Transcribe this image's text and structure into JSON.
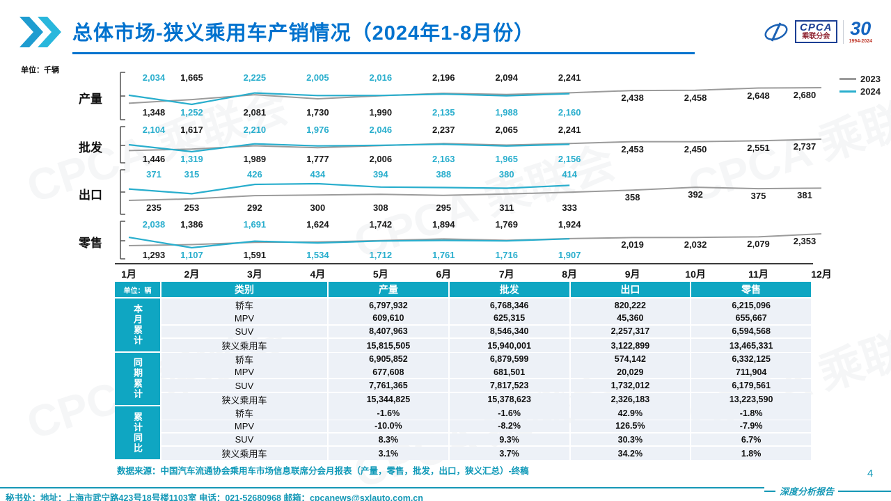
{
  "header": {
    "title": "总体市场-狭义乘用车产销情况（2024年1-8月份）",
    "logos": {
      "cpca_text": "CPCA",
      "cpca_sub": "乘联分会",
      "anniv": "30",
      "anniv_sub": "1994-2024"
    }
  },
  "chart": {
    "unit_label": "单位：千辆",
    "legend": [
      {
        "label": "2023",
        "color": "#9b9b9b"
      },
      {
        "label": "2024",
        "color": "#29AECD"
      }
    ]
  },
  "chart_data": [
    {
      "type": "line",
      "title": "产量",
      "x": [
        "1月",
        "2月",
        "3月",
        "4月",
        "5月",
        "6月",
        "7月",
        "8月",
        "9月",
        "10月",
        "11月",
        "12月"
      ],
      "series": [
        {
          "name": "2023",
          "color": "#9b9b9b",
          "values": [
            1348,
            1665,
            2081,
            1730,
            1990,
            2196,
            2094,
            2241,
            2438,
            2458,
            2648,
            2680
          ]
        },
        {
          "name": "2024",
          "color": "#29AECD",
          "values": [
            2034,
            1252,
            2225,
            2005,
            2016,
            2135,
            1988,
            2160
          ]
        }
      ]
    },
    {
      "type": "line",
      "title": "批发",
      "x": [
        "1月",
        "2月",
        "3月",
        "4月",
        "5月",
        "6月",
        "7月",
        "8月",
        "9月",
        "10月",
        "11月",
        "12月"
      ],
      "series": [
        {
          "name": "2023",
          "color": "#9b9b9b",
          "values": [
            1446,
            1617,
            1989,
            1777,
            2006,
            2237,
            2065,
            2241,
            2453,
            2450,
            2551,
            2737
          ]
        },
        {
          "name": "2024",
          "color": "#29AECD",
          "values": [
            2104,
            1319,
            2210,
            1976,
            2046,
            2163,
            1965,
            2156
          ]
        }
      ]
    },
    {
      "type": "line",
      "title": "出口",
      "x": [
        "1月",
        "2月",
        "3月",
        "4月",
        "5月",
        "6月",
        "7月",
        "8月",
        "9月",
        "10月",
        "11月",
        "12月"
      ],
      "series": [
        {
          "name": "2023",
          "color": "#9b9b9b",
          "values": [
            235,
            253,
            292,
            300,
            308,
            295,
            311,
            333,
            358,
            392,
            375,
            381
          ]
        },
        {
          "name": "2024",
          "color": "#29AECD",
          "values": [
            371,
            315,
            426,
            434,
            394,
            388,
            380,
            414
          ]
        }
      ]
    },
    {
      "type": "line",
      "title": "零售",
      "x": [
        "1月",
        "2月",
        "3月",
        "4月",
        "5月",
        "6月",
        "7月",
        "8月",
        "9月",
        "10月",
        "11月",
        "12月"
      ],
      "series": [
        {
          "name": "2023",
          "color": "#9b9b9b",
          "values": [
            1293,
            1386,
            1591,
            1624,
            1742,
            1894,
            1769,
            1924,
            2019,
            2032,
            2079,
            2353
          ]
        },
        {
          "name": "2024",
          "color": "#29AECD",
          "values": [
            2038,
            1107,
            1691,
            1534,
            1712,
            1761,
            1716,
            1907
          ]
        }
      ]
    }
  ],
  "table": {
    "unit_label": "单位：辆",
    "columns": [
      "类别",
      "产量",
      "批发",
      "出口",
      "零售"
    ],
    "groups": [
      {
        "label": "本月累计",
        "rows": [
          {
            "category": "轿车",
            "values": [
              "6,797,932",
              "6,768,346",
              "820,222",
              "6,215,096"
            ]
          },
          {
            "category": "MPV",
            "values": [
              "609,610",
              "625,315",
              "45,360",
              "655,667"
            ]
          },
          {
            "category": "SUV",
            "values": [
              "8,407,963",
              "8,546,340",
              "2,257,317",
              "6,594,568"
            ]
          },
          {
            "category": "狭义乘用车",
            "values": [
              "15,815,505",
              "15,940,001",
              "3,122,899",
              "13,465,331"
            ]
          }
        ]
      },
      {
        "label": "同期累计",
        "rows": [
          {
            "category": "轿车",
            "values": [
              "6,905,852",
              "6,879,599",
              "574,142",
              "6,332,125"
            ]
          },
          {
            "category": "MPV",
            "values": [
              "677,608",
              "681,501",
              "20,029",
              "711,904"
            ]
          },
          {
            "category": "SUV",
            "values": [
              "7,761,365",
              "7,817,523",
              "1,732,012",
              "6,179,561"
            ]
          },
          {
            "category": "狭义乘用车",
            "values": [
              "15,344,825",
              "15,378,623",
              "2,326,183",
              "13,223,590"
            ]
          }
        ]
      },
      {
        "label": "累计同比",
        "rows": [
          {
            "category": "轿车",
            "values": [
              "-1.6%",
              "-1.6%",
              "42.9%",
              "-1.8%"
            ]
          },
          {
            "category": "MPV",
            "values": [
              "-10.0%",
              "-8.2%",
              "126.5%",
              "-7.9%"
            ]
          },
          {
            "category": "SUV",
            "values": [
              "8.3%",
              "9.3%",
              "30.3%",
              "6.7%"
            ]
          },
          {
            "category": "狭义乘用车",
            "values": [
              "3.1%",
              "3.7%",
              "34.2%",
              "1.8%"
            ]
          }
        ]
      }
    ]
  },
  "source_note": "数据来源：中国汽车流通协会乘用车市场信息联席分会月报表（产量，零售，批发，出口，狭义汇总）-终稿",
  "page_number": "4",
  "footer": {
    "address": "秘书处：地址：上海市武宁路423号18号楼1103室 电话：021-52680968 邮箱：cpcanews@sxlauto.com.cn",
    "report_tag": "深度分析报告"
  },
  "watermark_text": "CPCA 乘联会"
}
